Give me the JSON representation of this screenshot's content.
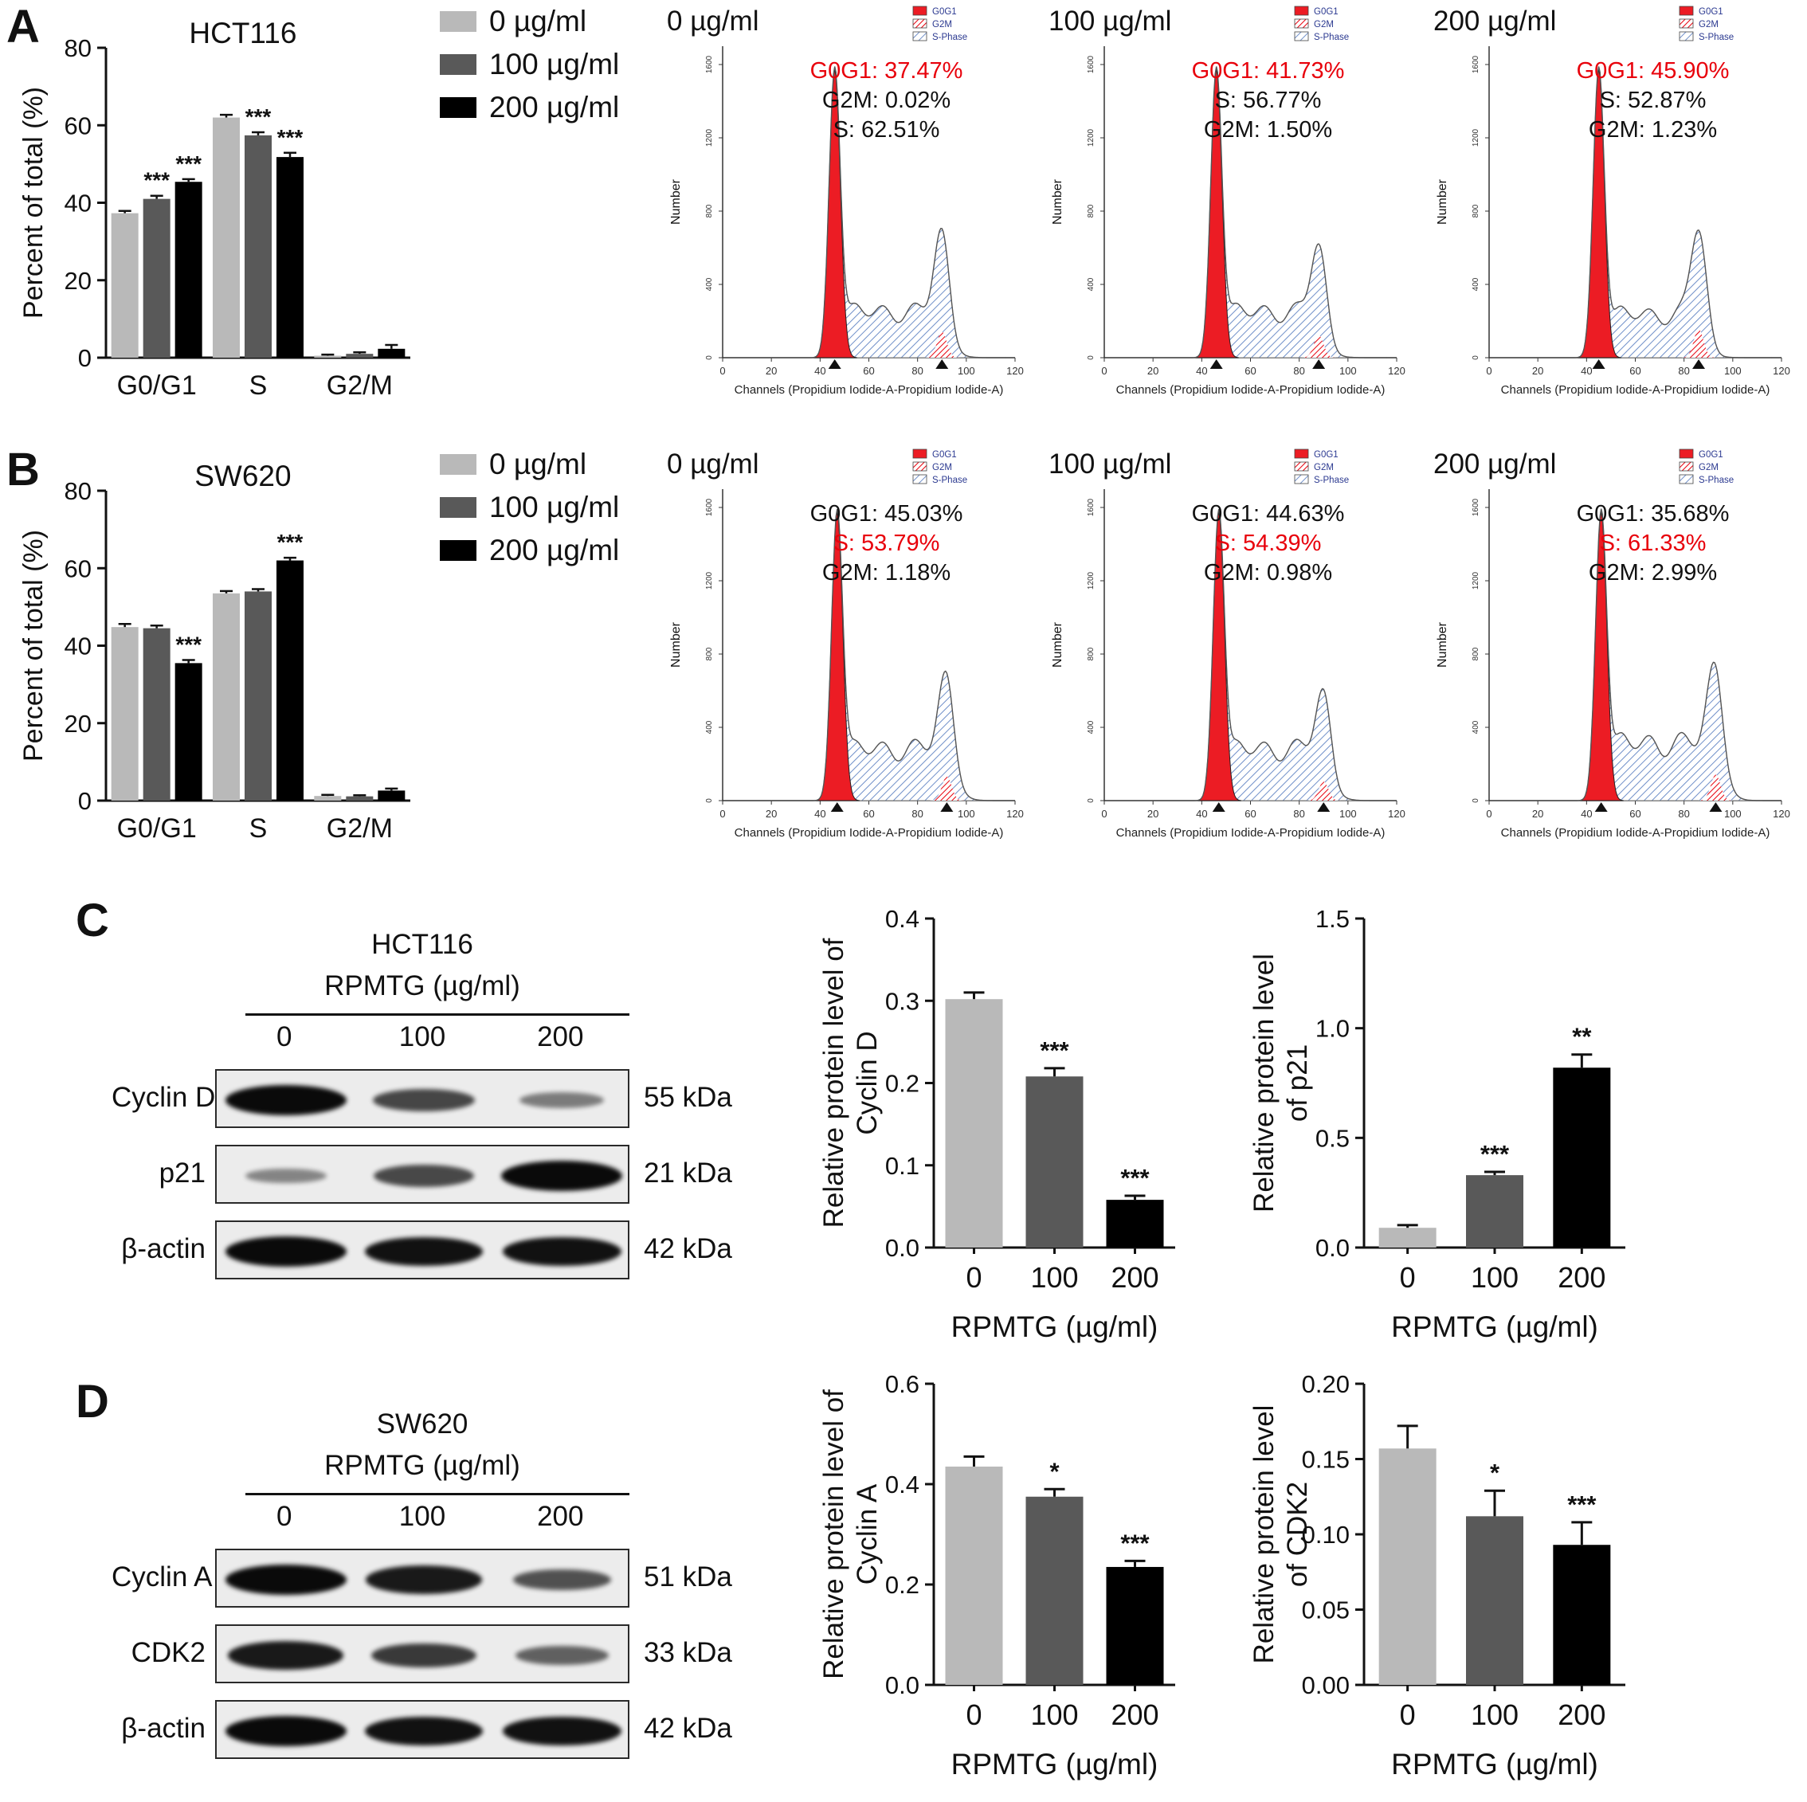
{
  "panels": {
    "a": {
      "label": "A"
    },
    "b": {
      "label": "B"
    },
    "c": {
      "label": "C",
      "blot": {
        "title": "HCT116",
        "treatment_label": "RPMTG (µg/ml)",
        "lanes": [
          "0",
          "100",
          "200"
        ],
        "rows": [
          {
            "protein": "Cyclin D",
            "kda": "55 kDa",
            "bands": [
              1.0,
              0.62,
              0.28
            ]
          },
          {
            "protein": "p21",
            "kda": "21 kDa",
            "bands": [
              0.22,
              0.6,
              1.0
            ]
          },
          {
            "protein": "β-actin",
            "kda": "42 kDa",
            "bands": [
              1.0,
              0.95,
              0.95
            ]
          }
        ]
      }
    },
    "d": {
      "label": "D",
      "blot": {
        "title": "SW620",
        "treatment_label": "RPMTG (µg/ml)",
        "lanes": [
          "0",
          "100",
          "200"
        ],
        "rows": [
          {
            "protein": "Cyclin A",
            "kda": "51 kDa",
            "bands": [
              1.0,
              0.9,
              0.55
            ]
          },
          {
            "protein": "CDK2",
            "kda": "33 kDa",
            "bands": [
              0.9,
              0.7,
              0.45
            ]
          },
          {
            "protein": "β-actin",
            "kda": "42 kDa",
            "bands": [
              1.0,
              0.95,
              0.95
            ]
          }
        ]
      }
    }
  },
  "chart_data": [
    {
      "id": "bar_hct116",
      "type": "bar",
      "title": "HCT116",
      "ylabel_lines": [
        "Percent of total (%)"
      ],
      "categories": [
        "G0/G1",
        "S",
        "G2/M"
      ],
      "ylim": [
        0,
        80
      ],
      "yticks": [
        0,
        20,
        40,
        60,
        80
      ],
      "ytick_labels": [
        "0",
        "20",
        "40",
        "60",
        "80"
      ],
      "series": [
        {
          "name": "0 µg/ml",
          "color": "#b9b9b9",
          "values": [
            37.3,
            62.0,
            0.5
          ],
          "errors": [
            0.6,
            0.7,
            0.3
          ],
          "sig": [
            "",
            "",
            ""
          ]
        },
        {
          "name": "100 µg/ml",
          "color": "#595959",
          "values": [
            41.0,
            57.4,
            1.0
          ],
          "errors": [
            0.8,
            0.8,
            0.4
          ],
          "sig": [
            "***",
            "***",
            ""
          ]
        },
        {
          "name": "200 µg/ml",
          "color": "#000000",
          "values": [
            45.4,
            51.8,
            2.3
          ],
          "errors": [
            0.7,
            1.1,
            1.0
          ],
          "sig": [
            "***",
            "***",
            ""
          ]
        }
      ]
    },
    {
      "id": "bar_sw620",
      "type": "bar",
      "title": "SW620",
      "ylabel_lines": [
        "Percent of total (%)"
      ],
      "categories": [
        "G0/G1",
        "S",
        "G2/M"
      ],
      "ylim": [
        0,
        80
      ],
      "yticks": [
        0,
        20,
        40,
        60,
        80
      ],
      "ytick_labels": [
        "0",
        "20",
        "40",
        "60",
        "80"
      ],
      "series": [
        {
          "name": "0 µg/ml",
          "color": "#b9b9b9",
          "values": [
            44.8,
            53.5,
            1.2
          ],
          "errors": [
            0.8,
            0.6,
            0.3
          ],
          "sig": [
            "",
            "",
            ""
          ]
        },
        {
          "name": "100 µg/ml",
          "color": "#595959",
          "values": [
            44.5,
            54.0,
            1.1
          ],
          "errors": [
            0.7,
            0.6,
            0.3
          ],
          "sig": [
            "",
            "",
            ""
          ]
        },
        {
          "name": "200 µg/ml",
          "color": "#000000",
          "values": [
            35.5,
            62.0,
            2.6
          ],
          "errors": [
            0.8,
            0.7,
            0.5
          ],
          "sig": [
            "***",
            "***",
            ""
          ]
        }
      ]
    },
    {
      "id": "flow_a_0",
      "type": "area",
      "title": "0 µg/ml",
      "xlabel": "Channels (Propidium Iodide-A-Propidium Iodide-A)",
      "ylabel": "Number",
      "xlim": [
        0,
        120
      ],
      "xticks": [
        0,
        20,
        40,
        60,
        80,
        100,
        120
      ],
      "yticks": [
        0,
        400,
        800,
        1200,
        1600
      ],
      "ycount_max": 1700,
      "legend": [
        "G0G1",
        "G2M",
        "S-Phase"
      ],
      "annotations": [
        {
          "text": "G0G1: 37.47%",
          "color": "red"
        },
        {
          "text": "G2M: 0.02%",
          "color": "black"
        },
        {
          "text": "S: 62.51%",
          "color": "black"
        }
      ],
      "shape": {
        "g1_center": 46,
        "g2_center": 90,
        "s_level": 0.16,
        "g2_height": 0.3
      }
    },
    {
      "id": "flow_a_100",
      "type": "area",
      "title": "100 µg/ml",
      "xlabel": "Channels (Propidium Iodide-A-Propidium Iodide-A)",
      "ylabel": "Number",
      "xlim": [
        0,
        120
      ],
      "xticks": [
        0,
        20,
        40,
        60,
        80,
        100,
        120
      ],
      "yticks": [
        0,
        400,
        800,
        1200,
        1600
      ],
      "ycount_max": 1700,
      "legend": [
        "G0G1",
        "G2M",
        "S-Phase"
      ],
      "annotations": [
        {
          "text": "G0G1: 41.73%",
          "color": "red"
        },
        {
          "text": "S: 56.77%",
          "color": "black"
        },
        {
          "text": "G2M: 1.50%",
          "color": "black"
        }
      ],
      "shape": {
        "g1_center": 46,
        "g2_center": 88,
        "s_level": 0.16,
        "g2_height": 0.26
      }
    },
    {
      "id": "flow_a_200",
      "type": "area",
      "title": "200 µg/ml",
      "xlabel": "Channels (Propidium Iodide-A-Propidium Iodide-A)",
      "ylabel": "Number",
      "xlim": [
        0,
        120
      ],
      "xticks": [
        0,
        20,
        40,
        60,
        80,
        100,
        120
      ],
      "yticks": [
        0,
        400,
        800,
        1200,
        1600
      ],
      "ycount_max": 1700,
      "legend": [
        "G0G1",
        "G2M",
        "S-Phase"
      ],
      "annotations": [
        {
          "text": "G0G1: 45.90%",
          "color": "red"
        },
        {
          "text": "S: 52.87%",
          "color": "black"
        },
        {
          "text": "G2M: 1.23%",
          "color": "black"
        }
      ],
      "shape": {
        "g1_center": 45,
        "g2_center": 86,
        "s_level": 0.15,
        "g2_height": 0.33
      }
    },
    {
      "id": "flow_b_0",
      "type": "area",
      "title": "0 µg/ml",
      "xlabel": "Channels (Propidium Iodide-A-Propidium Iodide-A)",
      "ylabel": "Number",
      "xlim": [
        0,
        120
      ],
      "xticks": [
        0,
        20,
        40,
        60,
        80,
        100,
        120
      ],
      "yticks": [
        0,
        400,
        800,
        1200,
        1600
      ],
      "ycount_max": 1700,
      "legend": [
        "G0G1",
        "G2M",
        "S-Phase"
      ],
      "annotations": [
        {
          "text": "G0G1: 45.03%",
          "color": "black"
        },
        {
          "text": "S: 53.79%",
          "color": "red"
        },
        {
          "text": "G2M: 1.18%",
          "color": "black"
        }
      ],
      "shape": {
        "g1_center": 47,
        "g2_center": 92,
        "s_level": 0.18,
        "g2_height": 0.28
      }
    },
    {
      "id": "flow_b_100",
      "type": "area",
      "title": "100 µg/ml",
      "xlabel": "Channels (Propidium Iodide-A-Propidium Iodide-A)",
      "ylabel": "Number",
      "xlim": [
        0,
        120
      ],
      "xticks": [
        0,
        20,
        40,
        60,
        80,
        100,
        120
      ],
      "yticks": [
        0,
        400,
        800,
        1200,
        1600
      ],
      "ycount_max": 1700,
      "legend": [
        "G0G1",
        "G2M",
        "S-Phase"
      ],
      "annotations": [
        {
          "text": "G0G1: 44.63%",
          "color": "black"
        },
        {
          "text": "S: 54.39%",
          "color": "red"
        },
        {
          "text": "G2M: 0.98%",
          "color": "black"
        }
      ],
      "shape": {
        "g1_center": 47,
        "g2_center": 90,
        "s_level": 0.18,
        "g2_height": 0.22
      }
    },
    {
      "id": "flow_b_200",
      "type": "area",
      "title": "200 µg/ml",
      "xlabel": "Channels (Propidium Iodide-A-Propidium Iodide-A)",
      "ylabel": "Number",
      "xlim": [
        0,
        120
      ],
      "xticks": [
        0,
        20,
        40,
        60,
        80,
        100,
        120
      ],
      "yticks": [
        0,
        400,
        800,
        1200,
        1600
      ],
      "ycount_max": 1700,
      "legend": [
        "G0G1",
        "G2M",
        "S-Phase"
      ],
      "annotations": [
        {
          "text": "G0G1: 35.68%",
          "color": "black"
        },
        {
          "text": "S: 61.33%",
          "color": "red"
        },
        {
          "text": "G2M: 2.99%",
          "color": "black"
        }
      ],
      "shape": {
        "g1_center": 46,
        "g2_center": 93,
        "s_level": 0.2,
        "g2_height": 0.3
      }
    },
    {
      "id": "bar_cyclind",
      "type": "bar",
      "categories": [
        "0",
        "100",
        "200"
      ],
      "values": [
        0.302,
        0.208,
        0.058
      ],
      "errors": [
        0.008,
        0.01,
        0.005
      ],
      "sig": [
        "",
        "***",
        "***"
      ],
      "bar_colors": [
        "#b9b9b9",
        "#595959",
        "#000000"
      ],
      "ylabel_lines": [
        "Relative protein level of",
        "Cyclin D"
      ],
      "xlabel": "RPMTG (µg/ml)",
      "ylim": [
        0,
        0.4
      ],
      "yticks": [
        0,
        0.1,
        0.2,
        0.3,
        0.4
      ],
      "ytick_labels": [
        "0.0",
        "0.1",
        "0.2",
        "0.3",
        "0.4"
      ]
    },
    {
      "id": "bar_p21",
      "type": "bar",
      "categories": [
        "0",
        "100",
        "200"
      ],
      "values": [
        0.09,
        0.33,
        0.82
      ],
      "errors": [
        0.012,
        0.015,
        0.06
      ],
      "sig": [
        "",
        "***",
        "**"
      ],
      "bar_colors": [
        "#b9b9b9",
        "#595959",
        "#000000"
      ],
      "ylabel_lines": [
        "Relative protein level",
        "of p21"
      ],
      "xlabel": "RPMTG (µg/ml)",
      "ylim": [
        0,
        1.5
      ],
      "yticks": [
        0,
        0.5,
        1.0,
        1.5
      ],
      "ytick_labels": [
        "0.0",
        "0.5",
        "1.0",
        "1.5"
      ]
    },
    {
      "id": "bar_cyclina",
      "type": "bar",
      "categories": [
        "0",
        "100",
        "200"
      ],
      "values": [
        0.435,
        0.375,
        0.235
      ],
      "errors": [
        0.02,
        0.015,
        0.012
      ],
      "sig": [
        "",
        "*",
        "***"
      ],
      "bar_colors": [
        "#b9b9b9",
        "#595959",
        "#000000"
      ],
      "ylabel_lines": [
        "Relative protein level of",
        "Cyclin A"
      ],
      "xlabel": "RPMTG (µg/ml)",
      "ylim": [
        0,
        0.6
      ],
      "yticks": [
        0,
        0.2,
        0.4,
        0.6
      ],
      "ytick_labels": [
        "0.0",
        "0.2",
        "0.4",
        "0.6"
      ]
    },
    {
      "id": "bar_cdk2",
      "type": "bar",
      "categories": [
        "0",
        "100",
        "200"
      ],
      "values": [
        0.157,
        0.112,
        0.093
      ],
      "errors": [
        0.015,
        0.017,
        0.015
      ],
      "sig": [
        "",
        "*",
        "***"
      ],
      "bar_colors": [
        "#b9b9b9",
        "#595959",
        "#000000"
      ],
      "ylabel_lines": [
        "Relative protein level",
        "of CDK2"
      ],
      "xlabel": "RPMTG (µg/ml)",
      "ylim": [
        0,
        0.2
      ],
      "yticks": [
        0,
        0.05,
        0.1,
        0.15,
        0.2
      ],
      "ytick_labels": [
        "0.00",
        "0.05",
        "0.10",
        "0.15",
        "0.20"
      ]
    }
  ]
}
